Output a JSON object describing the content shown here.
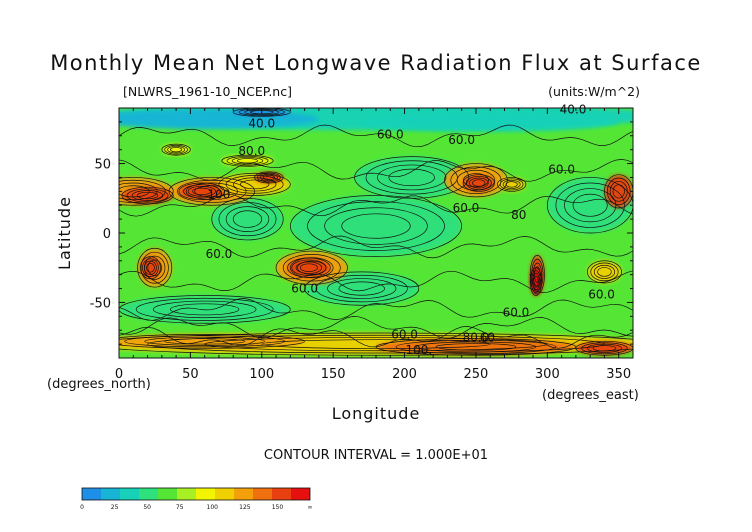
{
  "chart_data": {
    "type": "heatmap",
    "title": "Monthly Mean Net Longwave Radiation Flux at Surface",
    "subtitle_left": "[NLWRS_1961-10_NCEP.nc]",
    "subtitle_right": "(units:W/m^2)",
    "xlabel": "Longitude",
    "ylabel": "Latitude",
    "x_unit_label": "(degrees_east)",
    "y_unit_label": "(degrees_north)",
    "xlim": [
      0,
      360
    ],
    "ylim": [
      -90,
      90
    ],
    "x_ticks": [
      0,
      50,
      100,
      150,
      200,
      250,
      300,
      350
    ],
    "y_ticks": [
      50,
      0,
      -50
    ],
    "contour_interval_text": "CONTOUR INTERVAL = 1.000E+01",
    "contour_labels": [
      {
        "lon": 70,
        "lat": 25,
        "text": "100"
      },
      {
        "lon": 93,
        "lat": 56,
        "text": "80.0"
      },
      {
        "lon": 70,
        "lat": -18,
        "text": "60.0"
      },
      {
        "lon": 130,
        "lat": -43,
        "text": "60.0"
      },
      {
        "lon": 100,
        "lat": 76,
        "text": "40.0"
      },
      {
        "lon": 190,
        "lat": 68,
        "text": "60.0"
      },
      {
        "lon": 240,
        "lat": 64,
        "text": "60.0"
      },
      {
        "lon": 243,
        "lat": 15,
        "text": "60.0"
      },
      {
        "lon": 280,
        "lat": 10,
        "text": "80"
      },
      {
        "lon": 310,
        "lat": 43,
        "text": "60.0"
      },
      {
        "lon": 338,
        "lat": -47,
        "text": "60.0"
      },
      {
        "lon": 278,
        "lat": -60,
        "text": "60.0"
      },
      {
        "lon": 258,
        "lat": -78,
        "text": "60"
      },
      {
        "lon": 200,
        "lat": -76,
        "text": "60.0"
      },
      {
        "lon": 210,
        "lat": -87,
        "text": "100."
      },
      {
        "lon": 250,
        "lat": -78,
        "text": "80.0"
      },
      {
        "lon": 318,
        "lat": 86,
        "text": "40.0"
      }
    ],
    "colorbar": {
      "colors": [
        "#1e8fe6",
        "#17b4d6",
        "#16d1b8",
        "#2ee07e",
        "#55e635",
        "#a8ef24",
        "#f3f500",
        "#f0d000",
        "#f3a00a",
        "#f07010",
        "#e84010",
        "#e61010"
      ],
      "tick_labels": [
        "0",
        "25",
        "50",
        "75",
        "100",
        "125",
        "150",
        "∞"
      ]
    }
  }
}
